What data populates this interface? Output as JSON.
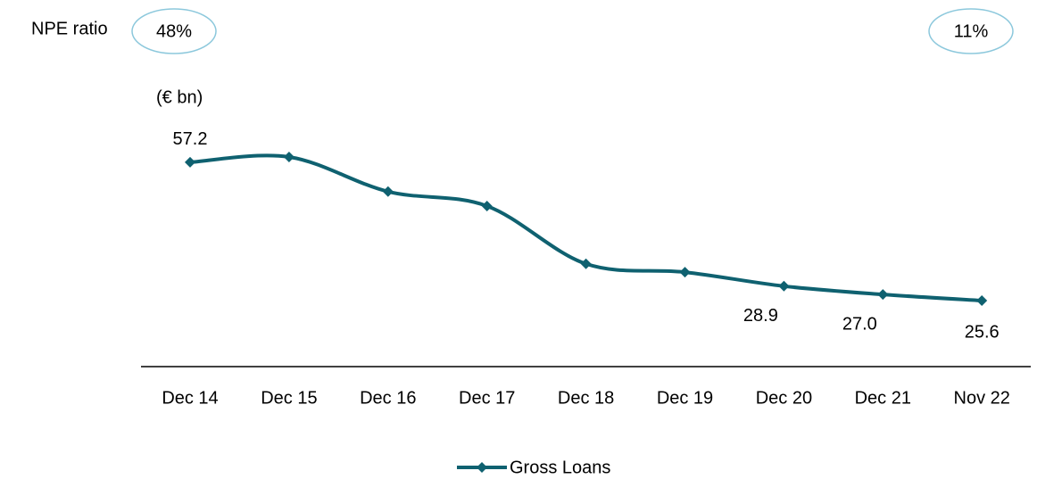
{
  "chart_data": {
    "type": "line",
    "y_label": "(€ bn)",
    "annotations": {
      "label": "NPE ratio",
      "first": "48%",
      "last": "11%"
    },
    "categories": [
      "Dec 14",
      "Dec 15",
      "Dec 16",
      "Dec 17",
      "Dec 18",
      "Dec 19",
      "Dec 20",
      "Dec 21",
      "Nov 22"
    ],
    "series": [
      {
        "name": "Gross Loans",
        "color": "#0f6170",
        "values": [
          57.2,
          58.4,
          50.5,
          47.2,
          34.0,
          32.1,
          28.9,
          27.0,
          25.6
        ],
        "value_labels": [
          "57.2",
          null,
          null,
          null,
          null,
          null,
          "28.9",
          "27.0",
          "25.6"
        ]
      }
    ],
    "legend": "bottom"
  }
}
